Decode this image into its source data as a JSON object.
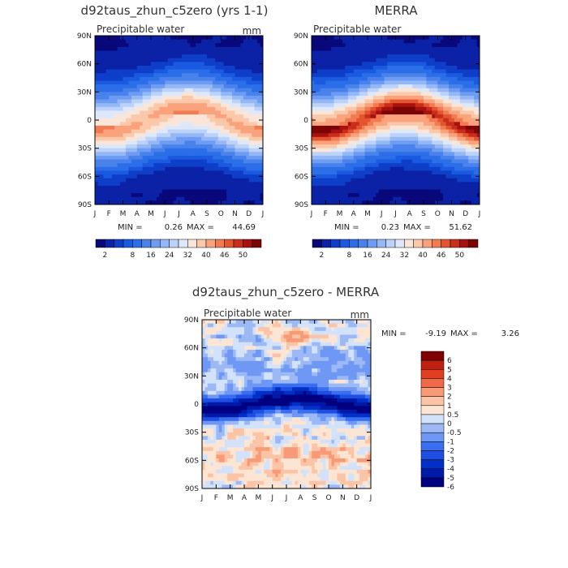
{
  "chart_data": [
    {
      "type": "heatmap",
      "title": "d92taus_zhun_c5zero (yrs 1-1)",
      "subtitle": "Precipitable water",
      "units": "mm",
      "x_tick_labels": [
        "J",
        "F",
        "M",
        "A",
        "M",
        "J",
        "J",
        "A",
        "S",
        "O",
        "N",
        "D",
        "J"
      ],
      "y_tick_labels": [
        "90N",
        "60N",
        "30N",
        "0",
        "30S",
        "60S",
        "90S"
      ],
      "min_label": "MIN =",
      "min_value": "0.26",
      "max_label": "MAX =",
      "max_value": "44.69",
      "colorbar_labels": [
        "2",
        "8",
        "16",
        "24",
        "32",
        "40",
        "46",
        "50"
      ],
      "colorbar_levels": [
        2,
        4,
        6,
        8,
        12,
        16,
        20,
        24,
        28,
        32,
        36,
        40,
        44,
        46,
        48,
        50
      ]
    },
    {
      "type": "heatmap",
      "title": "MERRA",
      "subtitle": "Precipitable water",
      "units": "",
      "x_tick_labels": [
        "J",
        "F",
        "M",
        "A",
        "M",
        "J",
        "J",
        "A",
        "S",
        "O",
        "N",
        "D",
        "J"
      ],
      "y_tick_labels": [
        "90N",
        "60N",
        "30N",
        "0",
        "30S",
        "60S",
        "90S"
      ],
      "min_label": "MIN =",
      "min_value": "0.23",
      "max_label": "MAX =",
      "max_value": "51.62",
      "colorbar_labels": [
        "2",
        "8",
        "16",
        "24",
        "32",
        "40",
        "46",
        "50"
      ],
      "colorbar_levels": [
        2,
        4,
        6,
        8,
        12,
        16,
        20,
        24,
        28,
        32,
        36,
        40,
        44,
        46,
        48,
        50
      ]
    },
    {
      "type": "heatmap",
      "title": "d92taus_zhun_c5zero - MERRA",
      "subtitle": "Precipitable water",
      "units": "mm",
      "x_tick_labels": [
        "J",
        "F",
        "M",
        "A",
        "M",
        "J",
        "J",
        "A",
        "S",
        "O",
        "N",
        "D",
        "J"
      ],
      "y_tick_labels": [
        "90N",
        "60N",
        "30N",
        "0",
        "30S",
        "60S",
        "90S"
      ],
      "min_label": "MIN =",
      "min_value": "-9.19",
      "max_label": "MAX =",
      "max_value": "3.26",
      "colorbar_labels": [
        "6",
        "5",
        "4",
        "3",
        "2",
        "1",
        "0.5",
        "0",
        "-0.5",
        "-1",
        "-2",
        "-3",
        "-4",
        "-5",
        "-6"
      ]
    }
  ],
  "colors": {
    "seq": [
      "#08087a",
      "#0b22a6",
      "#0f3fc8",
      "#1a5ae0",
      "#2b6ee8",
      "#4a82ec",
      "#6d9cf2",
      "#94b8f6",
      "#bcd2f9",
      "#dde8fb",
      "#fae6d8",
      "#fcc8aa",
      "#f9a27c",
      "#f27b52",
      "#e3542f",
      "#c92e1b",
      "#a91111",
      "#7b0505"
    ],
    "div": [
      "#000080",
      "#001aa8",
      "#0030c8",
      "#1f4ee2",
      "#3a6ef0",
      "#6f97f4",
      "#9cb9f6",
      "#d2e2fb",
      "#fde5d4",
      "#fbc4a6",
      "#f89a76",
      "#f06a48",
      "#e0401f",
      "#c02010",
      "#800000"
    ]
  }
}
